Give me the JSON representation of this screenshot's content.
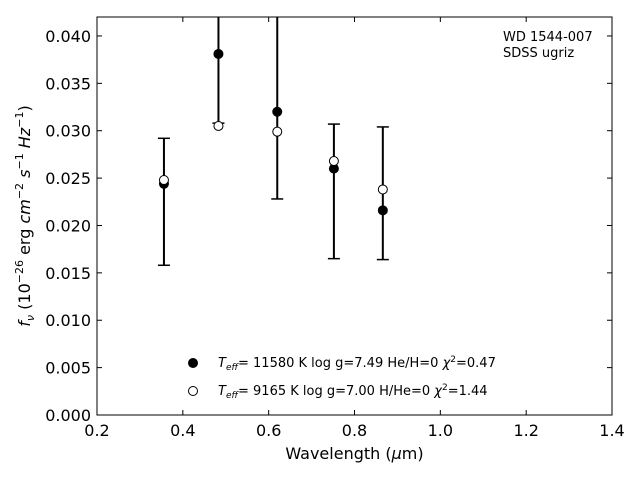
{
  "chart_data": {
    "type": "scatter",
    "annotation": [
      "WD 1544-007",
      "SDSS ugriz"
    ],
    "xlabel": "Wavelength (μm)",
    "ylabel": "fν (10⁻²⁶ erg cm⁻² s⁻¹ Hz⁻¹)",
    "xlim": [
      0.2,
      1.4
    ],
    "ylim": [
      0.0,
      0.042
    ],
    "xticks": [
      0.2,
      0.4,
      0.6,
      0.8,
      1.0,
      1.2,
      1.4
    ],
    "xtick_labels": [
      "0.2",
      "0.4",
      "0.6",
      "0.8",
      "1.0",
      "1.2",
      "1.4"
    ],
    "yticks": [
      0.0,
      0.005,
      0.01,
      0.015,
      0.02,
      0.025,
      0.03,
      0.035,
      0.04
    ],
    "ytick_labels": [
      "0.000",
      "0.005",
      "0.010",
      "0.015",
      "0.020",
      "0.025",
      "0.030",
      "0.035",
      "0.040"
    ],
    "grid": false,
    "legend_position": "bottom-center",
    "observed": {
      "x": [
        0.356,
        0.483,
        0.62,
        0.752,
        0.866
      ],
      "lower": [
        0.0158,
        0.0308,
        0.0228,
        0.0165,
        0.0164
      ],
      "upper": [
        0.0292,
        0.042,
        0.042,
        0.0307,
        0.0304
      ]
    },
    "series": [
      {
        "marker": "filled",
        "label": "Teff= 11580 K  log g=7.49  He/H=0  χ²=0.47",
        "x": [
          0.356,
          0.483,
          0.62,
          0.752,
          0.866
        ],
        "y": [
          0.0244,
          0.0381,
          0.032,
          0.026,
          0.0216
        ]
      },
      {
        "marker": "open",
        "label": "Teff=  9165 K  log g=7.00  H/He=0  χ²=1.44",
        "x": [
          0.356,
          0.483,
          0.62,
          0.752,
          0.866
        ],
        "y": [
          0.0248,
          0.0305,
          0.0299,
          0.0268,
          0.0238
        ]
      }
    ]
  }
}
